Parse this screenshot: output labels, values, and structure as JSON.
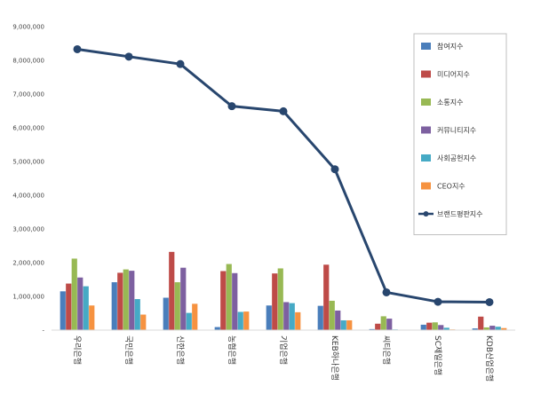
{
  "chart_data": {
    "type": "bar",
    "categories": [
      "우리은행",
      "국민은행",
      "신한은행",
      "농협은행",
      "기업은행",
      "KEB하나은행",
      "씨티은행",
      "SC제일은행",
      "KDB산업은행"
    ],
    "ylim": [
      0,
      9000000
    ],
    "ytick_labels": [
      "-",
      "1,000,000",
      "2,000,000",
      "3,000,000",
      "4,000,000",
      "5,000,000",
      "6,000,000",
      "7,000,000",
      "8,000,000",
      "9,000,000"
    ],
    "grid": false,
    "legend_position": "top-right",
    "series": [
      {
        "name": "참여지수",
        "type": "bar",
        "color": "#4a7ebb",
        "values": [
          1150000,
          1420000,
          960000,
          90000,
          730000,
          720000,
          30000,
          160000,
          50000
        ]
      },
      {
        "name": "미디어지수",
        "type": "bar",
        "color": "#be4b48",
        "values": [
          1380000,
          1700000,
          2320000,
          1750000,
          1680000,
          1940000,
          190000,
          220000,
          400000
        ]
      },
      {
        "name": "소통지수",
        "type": "bar",
        "color": "#98b954",
        "values": [
          2120000,
          1800000,
          1420000,
          1960000,
          1830000,
          870000,
          410000,
          230000,
          80000
        ]
      },
      {
        "name": "커뮤니티지수",
        "type": "bar",
        "color": "#7d60a0",
        "values": [
          1560000,
          1760000,
          1850000,
          1690000,
          830000,
          580000,
          340000,
          150000,
          130000
        ]
      },
      {
        "name": "사회공헌지수",
        "type": "bar",
        "color": "#46aac5",
        "values": [
          1300000,
          920000,
          510000,
          540000,
          800000,
          290000,
          20000,
          70000,
          100000
        ]
      },
      {
        "name": "CEO지수",
        "type": "bar",
        "color": "#f69240",
        "values": [
          730000,
          460000,
          780000,
          550000,
          530000,
          290000,
          10000,
          20000,
          60000
        ]
      },
      {
        "name": "브랜드평판지수",
        "type": "line",
        "color": "#28466e",
        "values": [
          8330000,
          8110000,
          7890000,
          6640000,
          6490000,
          4770000,
          1120000,
          840000,
          830000
        ]
      }
    ]
  }
}
